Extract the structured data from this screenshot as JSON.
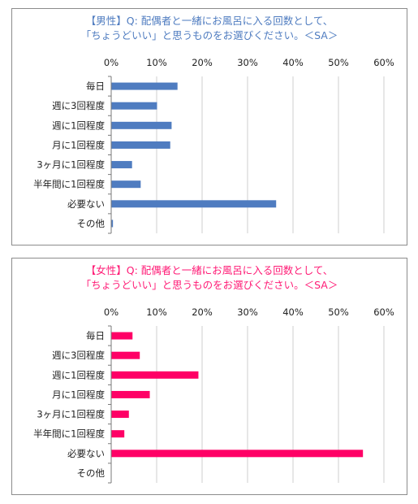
{
  "chart_data": [
    {
      "type": "bar",
      "orientation": "horizontal",
      "title_line1": "【男性】Q: 配偶者と一緒にお風呂に入る回数として、",
      "title_line2": "「ちょうどいい」と思うものをお選びください。＜SA＞",
      "title_color": "#4f7cc0",
      "bar_color": "#4f7cc0",
      "categories": [
        "毎日",
        "週に3回程度",
        "週に1回程度",
        "月に1回程度",
        "3ヶ月に1回程度",
        "半年間に1回程度",
        "必要ない",
        "その他"
      ],
      "values": [
        14.5,
        10.0,
        13.2,
        12.9,
        4.5,
        6.4,
        36.2,
        0.3
      ],
      "x_ticks": [
        "0%",
        "10%",
        "20%",
        "30%",
        "40%",
        "50%",
        "60%"
      ],
      "xlim": [
        0,
        60
      ],
      "grid": true
    },
    {
      "type": "bar",
      "orientation": "horizontal",
      "title_line1": "【女性】Q: 配偶者と一緒にお風呂に入る回数として、",
      "title_line2": "「ちょうどいい」と思うものをお選びください。＜SA＞",
      "title_color": "#ff1a75",
      "bar_color": "#ff0066",
      "categories": [
        "毎日",
        "週に3回程度",
        "週に1回程度",
        "月に1回程度",
        "3ヶ月に1回程度",
        "半年間に1回程度",
        "必要ない",
        "その他"
      ],
      "values": [
        4.6,
        6.2,
        19.1,
        8.4,
        3.8,
        2.8,
        55.3,
        0.0
      ],
      "x_ticks": [
        "0%",
        "10%",
        "20%",
        "30%",
        "40%",
        "50%",
        "60%"
      ],
      "xlim": [
        0,
        60
      ],
      "grid": true
    }
  ]
}
